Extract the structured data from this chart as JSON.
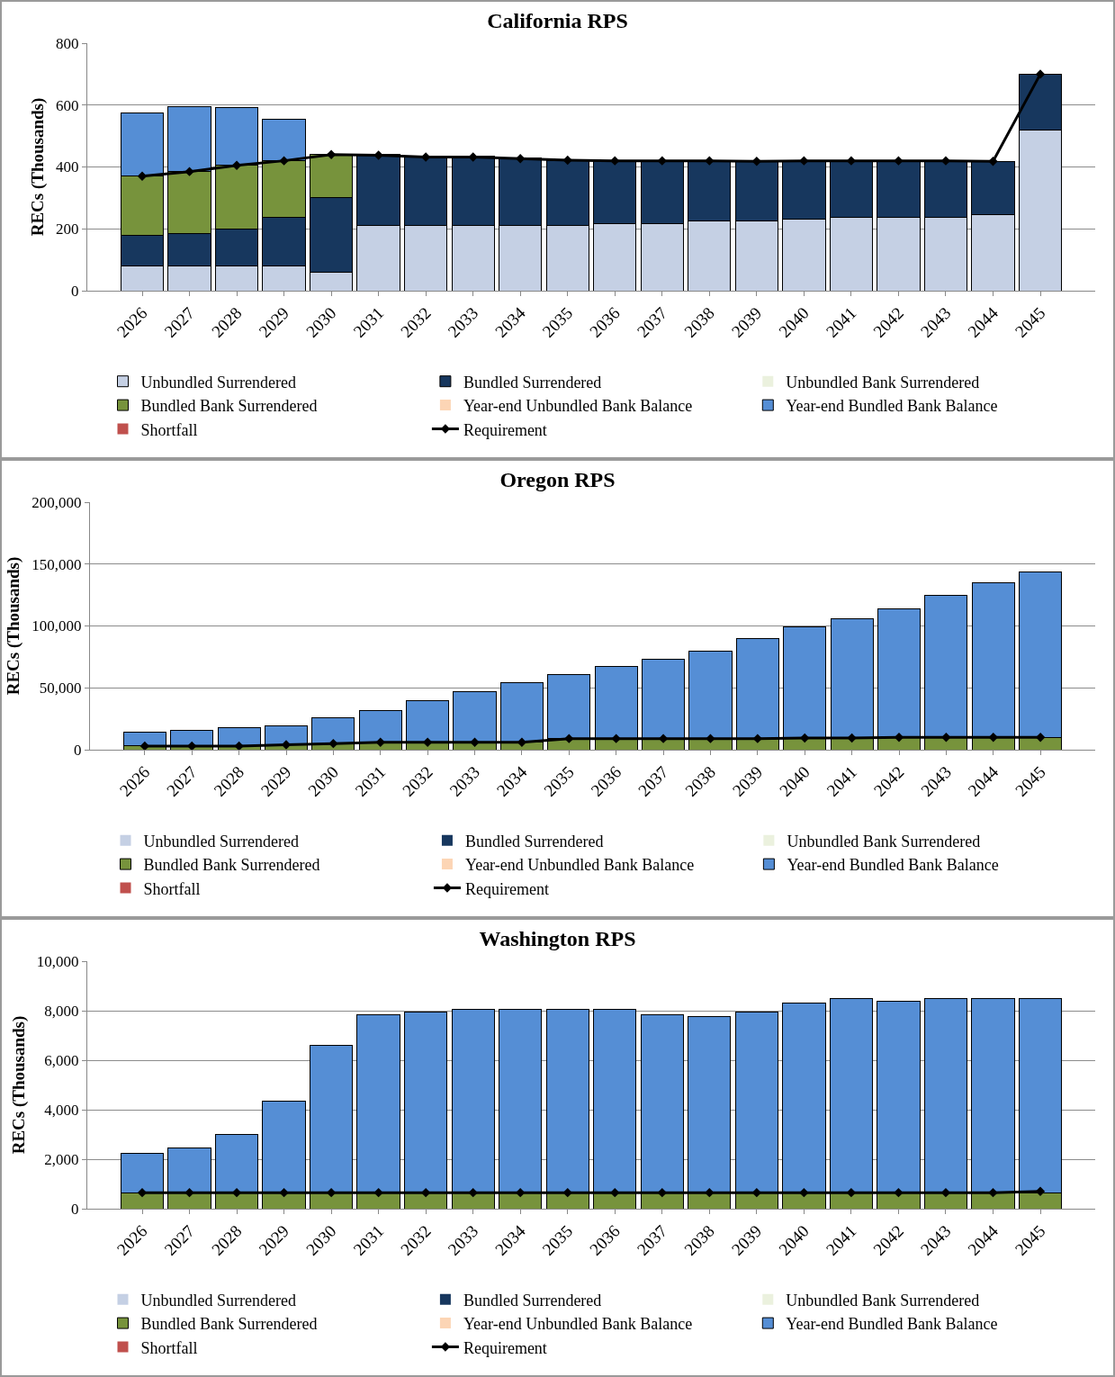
{
  "chart_data": [
    {
      "type": "bar",
      "stacked": true,
      "title": "California RPS",
      "ylabel": "RECs (Thousands)",
      "categories": [
        "2026",
        "2027",
        "2028",
        "2029",
        "2030",
        "2031",
        "2032",
        "2033",
        "2034",
        "2035",
        "2036",
        "2037",
        "2038",
        "2039",
        "2040",
        "2041",
        "2042",
        "2043",
        "2044",
        "2045"
      ],
      "ylim": [
        0,
        800
      ],
      "yticks": [
        0,
        200,
        400,
        600,
        800
      ],
      "grid": "y",
      "legend": "bottom",
      "series": [
        {
          "name": "Unbundled Surrendered",
          "color": "#c5d0e4",
          "values": [
            80,
            80,
            80,
            80,
            60,
            210,
            210,
            210,
            210,
            210,
            218,
            218,
            225,
            225,
            232,
            238,
            238,
            238,
            247,
            520
          ]
        },
        {
          "name": "Bundled Surrendered",
          "color": "#17375e",
          "values": [
            100,
            105,
            120,
            157,
            240,
            230,
            225,
            225,
            218,
            210,
            202,
            202,
            195,
            195,
            188,
            182,
            182,
            182,
            171,
            180
          ]
        },
        {
          "name": "Unbundled Bank Surrendered",
          "color": "#ebf1de",
          "values": [
            0,
            0,
            0,
            0,
            0,
            0,
            0,
            0,
            0,
            0,
            0,
            0,
            0,
            0,
            0,
            0,
            0,
            0,
            0,
            0
          ]
        },
        {
          "name": "Bundled Bank Surrendered",
          "color": "#77933c",
          "values": [
            190,
            200,
            205,
            183,
            140,
            0,
            0,
            0,
            0,
            0,
            0,
            0,
            0,
            0,
            0,
            0,
            0,
            0,
            0,
            0
          ]
        },
        {
          "name": "Year-end Unbundled Bank Balance",
          "color": "#fcd5b5",
          "values": [
            0,
            0,
            0,
            0,
            0,
            0,
            0,
            0,
            0,
            0,
            0,
            0,
            0,
            0,
            0,
            0,
            0,
            0,
            0,
            0
          ]
        },
        {
          "name": "Year-end Bundled Bank Balance",
          "color": "#558ed5",
          "values": [
            205,
            210,
            187,
            135,
            0,
            0,
            0,
            0,
            0,
            0,
            0,
            0,
            0,
            0,
            0,
            0,
            0,
            0,
            0,
            0
          ]
        },
        {
          "name": "Shortfall",
          "color": "#c0504d",
          "values": [
            0,
            0,
            0,
            0,
            0,
            0,
            0,
            0,
            0,
            0,
            0,
            0,
            0,
            0,
            0,
            0,
            0,
            0,
            0,
            0
          ]
        },
        {
          "name": "Requirement",
          "type": "line",
          "marker": "diamond",
          "color": "#000000",
          "values": [
            370,
            385,
            405,
            420,
            440,
            438,
            432,
            432,
            427,
            422,
            420,
            420,
            420,
            418,
            420,
            420,
            420,
            420,
            418,
            700
          ]
        }
      ]
    },
    {
      "type": "bar",
      "stacked": true,
      "title": "Oregon RPS",
      "ylabel": "RECs (Thousands)",
      "categories": [
        "2026",
        "2027",
        "2028",
        "2029",
        "2030",
        "2031",
        "2032",
        "2033",
        "2034",
        "2035",
        "2036",
        "2037",
        "2038",
        "2039",
        "2040",
        "2041",
        "2042",
        "2043",
        "2044",
        "2045"
      ],
      "ylim": [
        0,
        200000
      ],
      "yticks": [
        0,
        {
          "value": 50000,
          "label": "50,000"
        },
        {
          "value": 100000,
          "label": "100,000"
        },
        {
          "value": 150000,
          "label": "150,000"
        },
        {
          "value": 200000,
          "label": "200,000"
        }
      ],
      "grid": "y",
      "legend": "bottom",
      "series": [
        {
          "name": "Unbundled Surrendered",
          "color": "#c5d0e4",
          "values": [
            0,
            0,
            0,
            0,
            0,
            0,
            0,
            0,
            0,
            0,
            0,
            0,
            0,
            0,
            0,
            0,
            0,
            0,
            0,
            0
          ]
        },
        {
          "name": "Bundled Surrendered",
          "color": "#17375e",
          "values": [
            0,
            0,
            0,
            0,
            0,
            0,
            0,
            0,
            0,
            0,
            0,
            0,
            0,
            0,
            0,
            0,
            0,
            0,
            0,
            0
          ]
        },
        {
          "name": "Unbundled Bank Surrendered",
          "color": "#ebf1de",
          "values": [
            0,
            0,
            0,
            0,
            0,
            0,
            0,
            0,
            0,
            0,
            0,
            0,
            0,
            0,
            0,
            0,
            0,
            0,
            0,
            0
          ]
        },
        {
          "name": "Bundled Bank Surrendered",
          "color": "#77933c",
          "values": [
            3000,
            3000,
            3000,
            4000,
            5000,
            6000,
            6000,
            6000,
            6000,
            9000,
            9000,
            9000,
            9000,
            9000,
            9500,
            9500,
            10000,
            10000,
            10000,
            10000
          ]
        },
        {
          "name": "Year-end Unbundled Bank Balance",
          "color": "#fcd5b5",
          "values": [
            0,
            0,
            0,
            0,
            0,
            0,
            0,
            0,
            0,
            0,
            0,
            0,
            0,
            0,
            0,
            0,
            0,
            0,
            0,
            0
          ]
        },
        {
          "name": "Year-end Bundled Bank Balance",
          "color": "#558ed5",
          "values": [
            11000,
            13000,
            14500,
            15500,
            21000,
            25500,
            34000,
            41000,
            48000,
            51500,
            58500,
            64000,
            71000,
            81000,
            89500,
            96500,
            104000,
            114500,
            125000,
            133500
          ]
        },
        {
          "name": "Shortfall",
          "color": "#c0504d",
          "values": [
            0,
            0,
            0,
            0,
            0,
            0,
            0,
            0,
            0,
            0,
            0,
            0,
            0,
            0,
            0,
            0,
            0,
            0,
            0,
            0
          ]
        },
        {
          "name": "Requirement",
          "type": "line",
          "marker": "diamond",
          "color": "#000000",
          "values": [
            3000,
            3000,
            3000,
            4000,
            5000,
            6000,
            6000,
            6000,
            6000,
            9000,
            9000,
            9000,
            9000,
            9000,
            9500,
            9500,
            10000,
            10000,
            10000,
            10000
          ]
        }
      ]
    },
    {
      "type": "bar",
      "stacked": true,
      "title": "Washington RPS",
      "ylabel": "RECs (Thousands)",
      "categories": [
        "2026",
        "2027",
        "2028",
        "2029",
        "2030",
        "2031",
        "2032",
        "2033",
        "2034",
        "2035",
        "2036",
        "2037",
        "2038",
        "2039",
        "2040",
        "2041",
        "2042",
        "2043",
        "2044",
        "2045"
      ],
      "ylim": [
        0,
        10000
      ],
      "yticks": [
        0,
        {
          "value": 2000,
          "label": "2,000"
        },
        {
          "value": 4000,
          "label": "4,000"
        },
        {
          "value": 6000,
          "label": "6,000"
        },
        {
          "value": 8000,
          "label": "8,000"
        },
        {
          "value": 10000,
          "label": "10,000"
        }
      ],
      "grid": "y",
      "legend": "bottom",
      "series": [
        {
          "name": "Unbundled Surrendered",
          "color": "#c5d0e4",
          "values": [
            0,
            0,
            0,
            0,
            0,
            0,
            0,
            0,
            0,
            0,
            0,
            0,
            0,
            0,
            0,
            0,
            0,
            0,
            0,
            0
          ]
        },
        {
          "name": "Bundled Surrendered",
          "color": "#17375e",
          "values": [
            0,
            0,
            0,
            0,
            0,
            0,
            0,
            0,
            0,
            0,
            0,
            0,
            0,
            0,
            0,
            0,
            0,
            0,
            0,
            0
          ]
        },
        {
          "name": "Unbundled Bank Surrendered",
          "color": "#ebf1de",
          "values": [
            0,
            0,
            0,
            0,
            0,
            0,
            0,
            0,
            0,
            0,
            0,
            0,
            0,
            0,
            0,
            0,
            0,
            0,
            0,
            0
          ]
        },
        {
          "name": "Bundled Bank Surrendered",
          "color": "#77933c",
          "values": [
            650,
            650,
            650,
            650,
            650,
            650,
            650,
            650,
            650,
            650,
            650,
            650,
            650,
            650,
            650,
            650,
            650,
            650,
            650,
            650
          ]
        },
        {
          "name": "Year-end Unbundled Bank Balance",
          "color": "#fcd5b5",
          "values": [
            0,
            0,
            0,
            0,
            0,
            0,
            0,
            0,
            0,
            0,
            0,
            0,
            0,
            0,
            0,
            0,
            0,
            0,
            0,
            0
          ]
        },
        {
          "name": "Year-end Bundled Bank Balance",
          "color": "#558ed5",
          "values": [
            1600,
            1800,
            2350,
            3700,
            5950,
            7200,
            7300,
            7400,
            7400,
            7400,
            7400,
            7200,
            7100,
            7300,
            7650,
            7850,
            7750,
            7850,
            7850,
            7850
          ]
        },
        {
          "name": "Shortfall",
          "color": "#c0504d",
          "values": [
            0,
            0,
            0,
            0,
            0,
            0,
            0,
            0,
            0,
            0,
            0,
            0,
            0,
            0,
            0,
            0,
            0,
            0,
            0,
            0
          ]
        },
        {
          "name": "Requirement",
          "type": "line",
          "marker": "diamond",
          "color": "#000000",
          "values": [
            650,
            650,
            650,
            650,
            650,
            650,
            650,
            650,
            650,
            650,
            650,
            650,
            650,
            650,
            650,
            650,
            650,
            650,
            650,
            700
          ]
        }
      ]
    }
  ]
}
